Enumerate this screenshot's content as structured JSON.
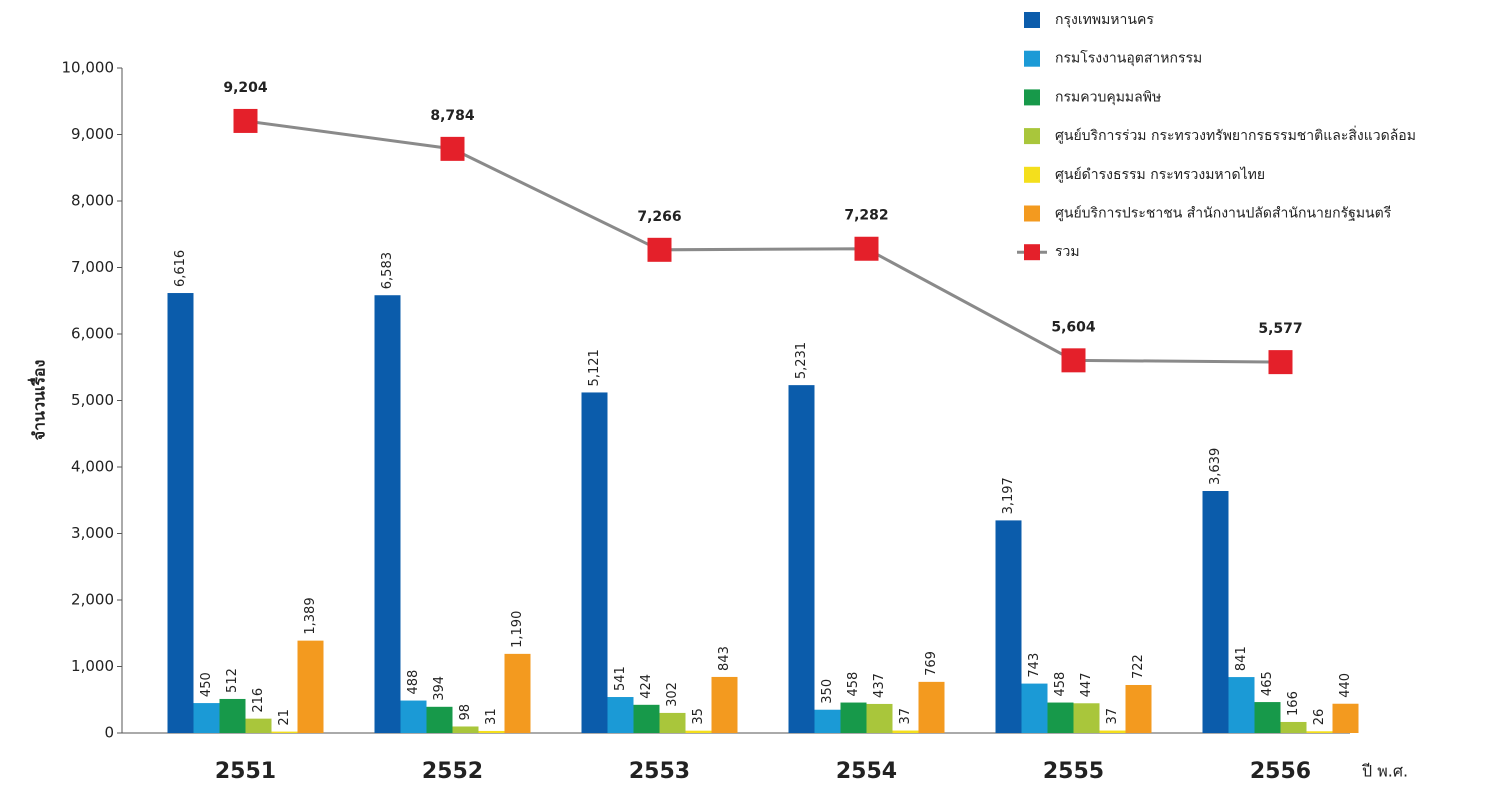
{
  "chart_data": {
    "type": "bar",
    "y_label": "จำนวนเรื่อง",
    "x_label": "ปี พ.ศ.",
    "categories": [
      "2551",
      "2552",
      "2553",
      "2554",
      "2555",
      "2556"
    ],
    "series": [
      {
        "name": "กรุงเทพมหานคร",
        "color": "#0b5cab",
        "values": [
          6616,
          6583,
          5121,
          5231,
          3197,
          3639
        ],
        "value_labels": [
          "6,616",
          "6,583",
          "5,121",
          "5,231",
          "3,197",
          "3,639"
        ]
      },
      {
        "name": "กรมโรงงานอุตสาหกรรม",
        "color": "#1b9ad6",
        "values": [
          450,
          488,
          541,
          350,
          743,
          841
        ]
      },
      {
        "name": "กรมควบคุมมลพิษ",
        "color": "#17994a",
        "values": [
          512,
          394,
          424,
          458,
          458,
          465
        ]
      },
      {
        "name": "ศูนย์บริการร่วม กระทรวงทรัพยากรธรรมชาติและสิ่งแวดล้อม",
        "color": "#a9c63b",
        "values": [
          216,
          98,
          302,
          437,
          447,
          166
        ]
      },
      {
        "name": "ศูนย์ดำรงธรรม กระทรวงมหาดไทย",
        "color": "#f4df1c",
        "values": [
          21,
          31,
          35,
          37,
          37,
          26
        ]
      },
      {
        "name": "ศูนย์บริการประชาชน สำนักงานปลัดสำนักนายกรัฐมนตรี",
        "color": "#f39a1f",
        "values": [
          1389,
          1190,
          843,
          769,
          722,
          440
        ],
        "value_labels": [
          "1,389",
          "1,190",
          "843",
          "769",
          "722",
          "440"
        ]
      },
      {
        "name": "รวม",
        "type": "line",
        "color": "#e4202a",
        "line_color": "#8a8a8a",
        "values": [
          9204,
          8784,
          7266,
          7282,
          5604,
          5577
        ],
        "value_labels": [
          "9,204",
          "8,784",
          "7,266",
          "7,282",
          "5,604",
          "5,577"
        ]
      }
    ],
    "ylim": [
      0,
      10000
    ],
    "yticks": [
      0,
      {
        "value": 1000,
        "label": "1,000"
      },
      {
        "value": 2000,
        "label": "2,000"
      },
      {
        "value": 3000,
        "label": "3,000"
      },
      {
        "value": 4000,
        "label": "4,000"
      },
      {
        "value": 5000,
        "label": "5,000"
      },
      {
        "value": 6000,
        "label": "6,000"
      },
      {
        "value": 7000,
        "label": "7,000"
      },
      {
        "value": 8000,
        "label": "8,000"
      },
      {
        "value": 9000,
        "label": "9,000"
      },
      {
        "value": 10000,
        "label": "10,000"
      }
    ]
  }
}
